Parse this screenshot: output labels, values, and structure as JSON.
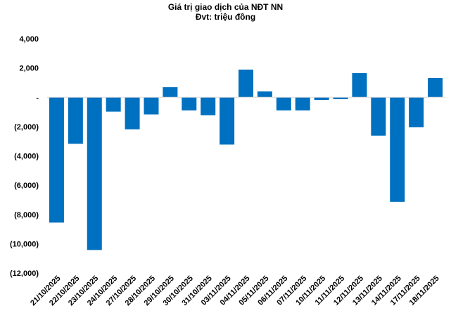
{
  "chart_data": {
    "type": "bar",
    "title": "Giá trị giao dịch của NĐT NN",
    "subtitle": "Đvt: triệu đồng",
    "xlabel": "",
    "ylabel": "",
    "ylim": [
      -12000,
      4000
    ],
    "yticks": [
      4000,
      2000,
      0,
      -2000,
      -4000,
      -6000,
      -8000,
      -10000,
      -12000
    ],
    "ytick_labels": [
      "4,000",
      "2,000",
      "-",
      "(2,000)",
      "(4,000)",
      "(6,000)",
      "(8,000)",
      "(10,000)",
      "(12,000)"
    ],
    "grid": false,
    "legend": "none",
    "bar_color": "#0070C0",
    "categories": [
      "21/10/2025",
      "22/10/2025",
      "23/10/2025",
      "24/10/2025",
      "27/10/2025",
      "28/10/2025",
      "29/10/2025",
      "30/10/2025",
      "31/10/2025",
      "03/11/2025",
      "04/11/2025",
      "05/11/2025",
      "06/11/2025",
      "07/11/2025",
      "10/11/2025",
      "11/11/2025",
      "12/11/2025",
      "13/11/2025",
      "14/11/2025",
      "17/11/2025",
      "18/11/2025"
    ],
    "values": [
      -8560,
      -3180,
      -10430,
      -980,
      -2190,
      -1170,
      690,
      -900,
      -1230,
      -3230,
      1890,
      400,
      -900,
      -900,
      -180,
      -130,
      1650,
      -2620,
      -7140,
      -2050,
      1310
    ]
  }
}
